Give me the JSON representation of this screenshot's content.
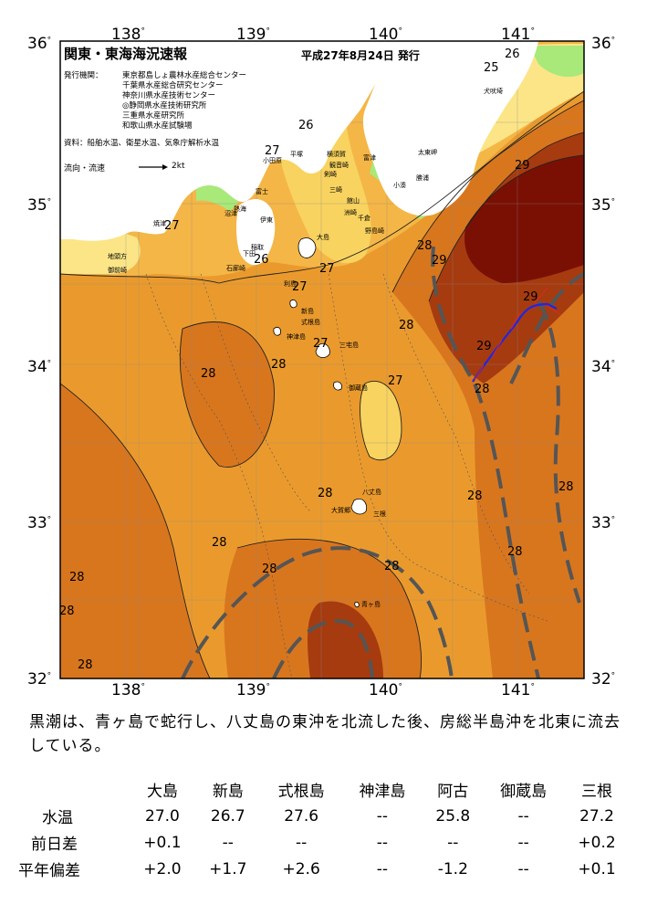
{
  "map": {
    "title": "関東・東海海況速報",
    "issue_date": "平成27年8月24日 発行",
    "issuer_label": "発行機関：",
    "issuers": [
      "東京都島しょ農林水産総合センター",
      "千葉県水産総合研究センター",
      "神奈川県水産技術センター",
      "◎静岡県水産技術研究所",
      "三重県水産研究所",
      "和歌山県水産試験場"
    ],
    "sources": "資料：船舶水温、衛星水温、気象庁解析水温",
    "current_legend_label": "流向・流速",
    "current_legend_value": "2kt",
    "lon_labels": [
      "138",
      "139",
      "140",
      "141"
    ],
    "lat_labels": [
      "36",
      "35",
      "34",
      "33",
      "32"
    ],
    "degree_symbol": "°",
    "isotherm_labels": [
      "25",
      "26",
      "26",
      "27",
      "27",
      "26",
      "27",
      "27",
      "27",
      "27",
      "28",
      "29",
      "29",
      "29",
      "29",
      "28",
      "28",
      "28",
      "28",
      "28",
      "28",
      "28",
      "28",
      "28",
      "28",
      "28",
      "28",
      "28",
      "28"
    ],
    "place_labels": [
      "犬吠埼",
      "太東岬",
      "勝浦",
      "小湊",
      "洲崎",
      "館山",
      "千倉",
      "野島崎",
      "平塚",
      "横須賀",
      "観音崎",
      "富津",
      "剣崎",
      "三崎",
      "小田原",
      "熱海",
      "伊東",
      "稲取",
      "下田",
      "石廊崎",
      "大島",
      "利島",
      "新島",
      "式根島",
      "神津島",
      "三宅島",
      "御蔵島",
      "八丈島",
      "大賀郷",
      "三根",
      "青ヶ島",
      "焼津",
      "地頭方",
      "御前崎",
      "沼津",
      "富士"
    ],
    "colors": {
      "warm_dark": "#7a1004",
      "warm_red": "#a63b10",
      "orange_dark": "#d8761e",
      "orange": "#ea9a2d",
      "orange_light": "#f4b646",
      "yellow": "#f8d35f",
      "pale_yellow": "#fbe587",
      "green": "#a8e97a",
      "land": "#ffffff",
      "kuroshio_axis": "#555555",
      "ship_track": "#1d27e6"
    }
  },
  "summary": {
    "text": "黒潮は、青ヶ島で蛇行し、八丈島の東沖を北流した後、房総半島沖を北東に流去している。"
  },
  "table": {
    "stations": [
      "大島",
      "新島",
      "式根島",
      "神津島",
      "阿古",
      "御蔵島",
      "三根"
    ],
    "rows": [
      {
        "label": "水温",
        "values": [
          "27.0",
          "26.7",
          "27.6",
          "--",
          "25.8",
          "--",
          "27.2"
        ]
      },
      {
        "label": "前日差",
        "values": [
          "+0.1",
          "--",
          "--",
          "--",
          "--",
          "--",
          "+0.2"
        ]
      },
      {
        "label": "平年偏差",
        "values": [
          "+2.0",
          "+1.7",
          "+2.6",
          "--",
          "-1.2",
          "--",
          "+0.1"
        ]
      }
    ]
  }
}
